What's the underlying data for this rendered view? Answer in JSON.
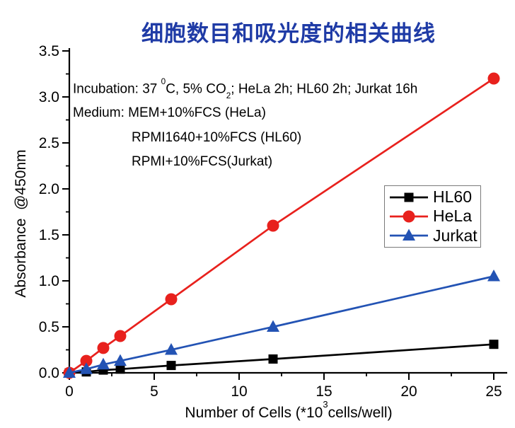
{
  "page": {
    "background": "#FFFFFF"
  },
  "title": {
    "text": "细胞数目和吸光度的相关曲线",
    "color": "#1F3BA6"
  },
  "annotations": {
    "incubation": {
      "seg1": "Incubation: 37 ",
      "sup": "0",
      "seg2": "C, 5% CO",
      "sub": "2",
      "seg3": "; HeLa 2h; HL60 2h; Jurkat 16h"
    },
    "medium_line1": "Medium: MEM+10%FCS (HeLa)",
    "medium_line2": "RPMI1640+10%FCS (HL60)",
    "medium_line3": "RPMI+10%FCS(Jurkat)"
  },
  "chart_data": {
    "type": "line",
    "title": "细胞数目和吸光度的相关曲线",
    "x": [
      0,
      1,
      2,
      3,
      6,
      12,
      25
    ],
    "series": [
      {
        "name": "HL60",
        "color": "#000000",
        "marker": "square",
        "values": [
          0,
          0.01,
          0.03,
          0.04,
          0.08,
          0.15,
          0.31
        ]
      },
      {
        "name": "HeLa",
        "color": "#E8211D",
        "marker": "circle",
        "values": [
          0,
          0.13,
          0.27,
          0.4,
          0.8,
          1.6,
          3.2
        ]
      },
      {
        "name": "Jurkat",
        "color": "#2353B4",
        "marker": "triangle",
        "values": [
          0,
          0.04,
          0.09,
          0.13,
          0.25,
          0.5,
          1.05
        ]
      }
    ],
    "xlabel": {
      "pre": "Number of Cells (*10",
      "sup": "3",
      "post": "cells/well)"
    },
    "ylabel": "Absorbance  @450nm",
    "xlim": [
      0,
      25
    ],
    "ylim": [
      0,
      3.5
    ],
    "x_major_ticks": [
      0,
      5,
      10,
      15,
      20,
      25
    ],
    "x_minor_step": 2.5,
    "y_major_ticks": [
      0.0,
      0.5,
      1.0,
      1.5,
      2.0,
      2.5,
      3.0,
      3.5
    ],
    "y_minor_step": 0.25,
    "grid": false,
    "legend": {
      "position": "right-middle",
      "entries": [
        "HL60",
        "HeLa",
        "Jurkat"
      ]
    },
    "axis_color": "#000000",
    "tick_direction": "out"
  }
}
